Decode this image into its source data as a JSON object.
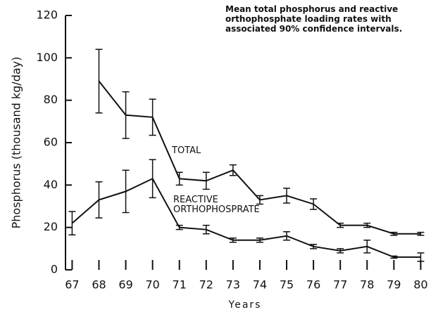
{
  "chart_data": {
    "type": "line",
    "title": "Mean total phosphorus and reactive orthophosphate loading rates with associated 90% confidence intervals.",
    "xlabel": "Years",
    "ylabel": "Phosphorus (thousand kg/day)",
    "x": [
      67,
      68,
      69,
      70,
      71,
      72,
      73,
      74,
      75,
      76,
      77,
      78,
      79,
      80
    ],
    "series": [
      {
        "name": "TOTAL",
        "color": "#111111",
        "values": [
          null,
          89,
          73,
          72,
          43,
          42,
          47,
          33,
          35,
          31,
          21,
          21,
          17,
          17
        ],
        "errors": [
          null,
          15,
          11,
          8.5,
          3,
          4,
          2.5,
          2,
          3.5,
          2.5,
          1,
          1,
          0.7,
          0.7
        ]
      },
      {
        "name": "REACTIVE ORTHOPHOSPRATE",
        "color": "#111111",
        "values": [
          22,
          33,
          37,
          43,
          20,
          19,
          14,
          14,
          16,
          11,
          9,
          11,
          6,
          6
        ],
        "errors": [
          5.5,
          8.5,
          10,
          9,
          1,
          2,
          1,
          1,
          2,
          1,
          1,
          3,
          0.5,
          2
        ]
      }
    ],
    "xlim": [
      66.7,
      80.2
    ],
    "xticks": [
      67,
      68,
      69,
      70,
      71,
      72,
      73,
      74,
      75,
      76,
      77,
      78,
      79,
      80
    ],
    "ylim": [
      0,
      120
    ],
    "yticks": [
      0,
      20,
      40,
      60,
      80,
      100,
      120
    ],
    "grid": false
  }
}
